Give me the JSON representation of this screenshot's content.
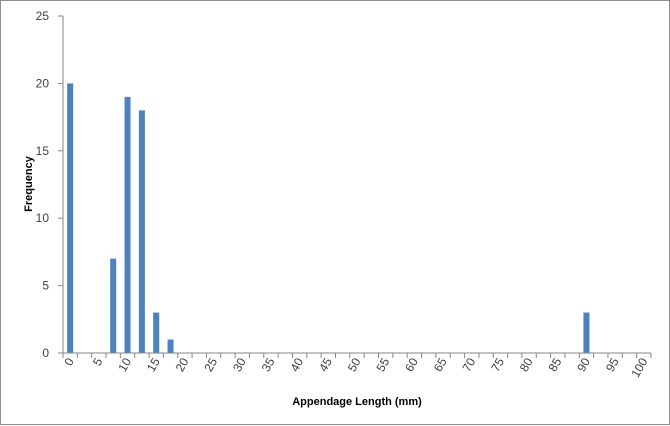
{
  "colors": {
    "bar": "#4f81bd",
    "axis": "#868686",
    "text": "#404040",
    "border": "#8c8c8c"
  },
  "chart_data": {
    "type": "bar",
    "title": "",
    "xlabel": "Appendage Length (mm)",
    "ylabel": "Frequency",
    "ylim": [
      0,
      25
    ],
    "y_ticks": [
      "0",
      "5",
      "10",
      "15",
      "20",
      "25"
    ],
    "grid": false,
    "legend": "none",
    "categories": [
      "0",
      "2.5",
      "5",
      "7.5",
      "10",
      "12.5",
      "15",
      "17.5",
      "20",
      "22.5",
      "25",
      "27.5",
      "30",
      "32.5",
      "35",
      "37.5",
      "40",
      "42.5",
      "45",
      "47.5",
      "50",
      "52.5",
      "55",
      "57.5",
      "60",
      "62.5",
      "65",
      "67.5",
      "70",
      "72.5",
      "75",
      "77.5",
      "80",
      "82.5",
      "85",
      "87.5",
      "90",
      "92.5",
      "95",
      "97.5",
      "100"
    ],
    "values": [
      20,
      0,
      0,
      7,
      19,
      18,
      3,
      1,
      0,
      0,
      0,
      0,
      0,
      0,
      0,
      0,
      0,
      0,
      0,
      0,
      0,
      0,
      0,
      0,
      0,
      0,
      0,
      0,
      0,
      0,
      0,
      0,
      0,
      0,
      0,
      0,
      3,
      0,
      0,
      0,
      0
    ],
    "x_tick_labels": [
      "0",
      "5",
      "10",
      "15",
      "20",
      "25",
      "30",
      "35",
      "40",
      "45",
      "50",
      "55",
      "60",
      "65",
      "70",
      "75",
      "80",
      "85",
      "90",
      "95",
      "100"
    ]
  }
}
